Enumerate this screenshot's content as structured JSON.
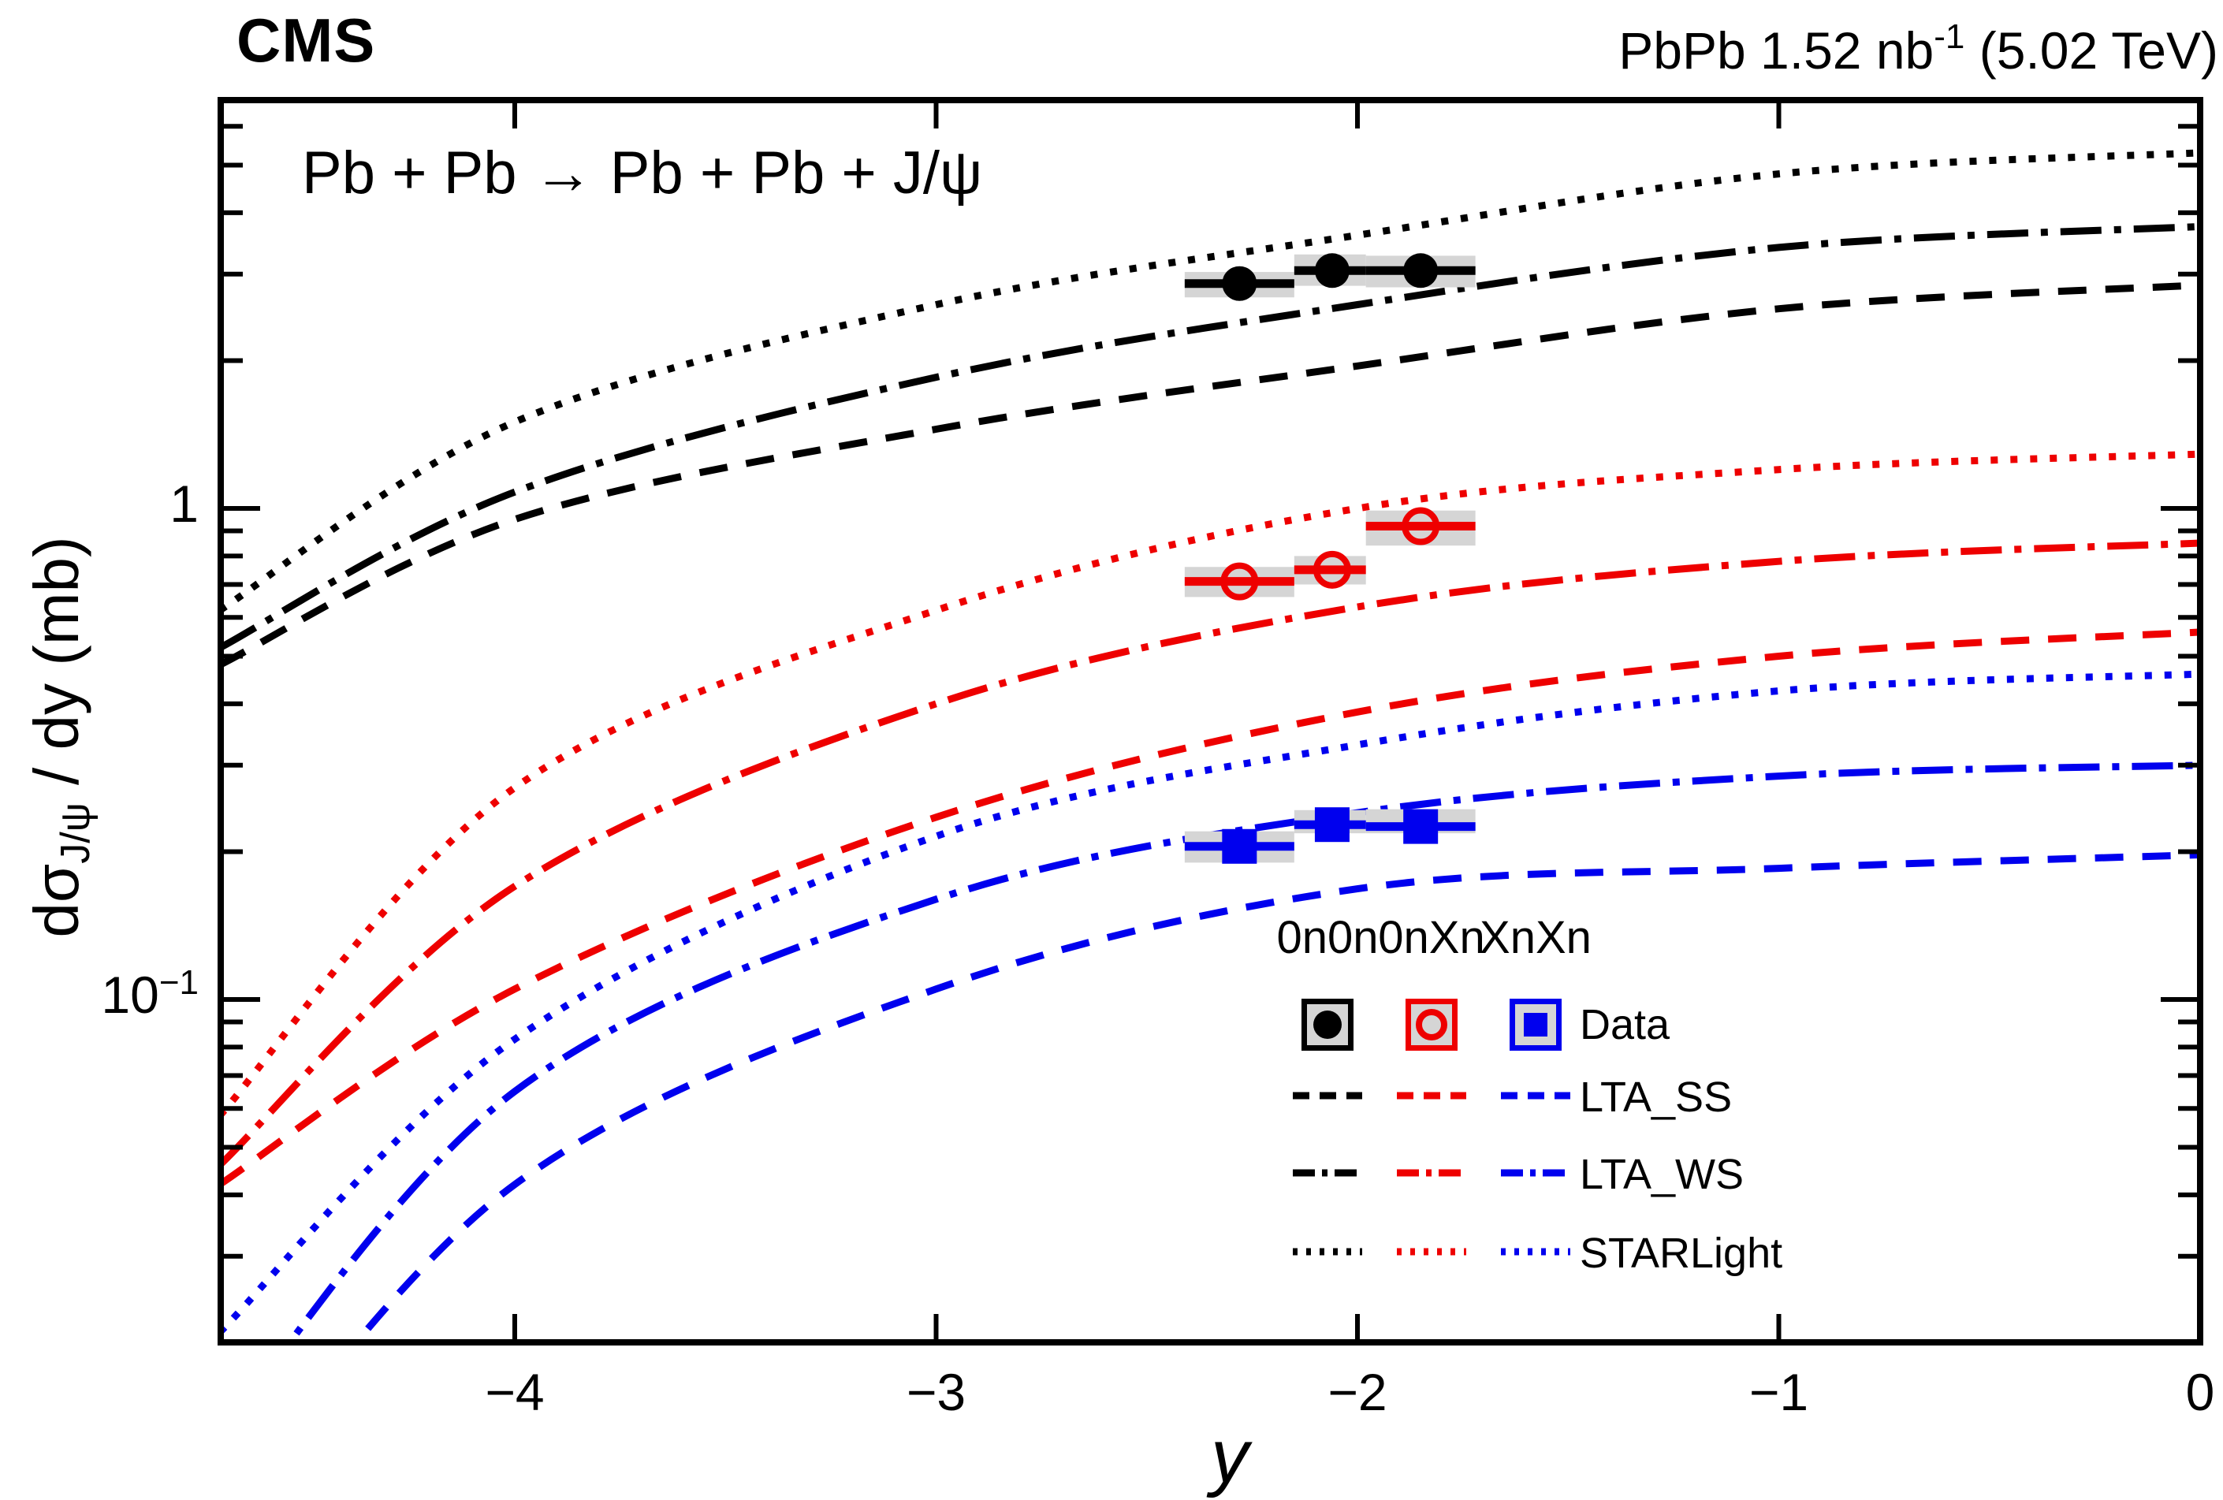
{
  "header": {
    "experiment": "CMS",
    "lumi_pre": "PbPb 1.52 nb",
    "lumi_sup": "-1",
    "lumi_post": " (5.02 TeV)"
  },
  "plot_title": "Pb + Pb → Pb + Pb + J/ψ",
  "colors": {
    "0n0n": "#000000",
    "0nXn": "#ee0000",
    "XnXn": "#0000ee",
    "sys_box": "#d5d5d5",
    "frame": "#000000"
  },
  "axes": {
    "x": {
      "title": "y",
      "range": [
        -4.7,
        0
      ],
      "ticks": [
        {
          "v": -4,
          "label": "−4"
        },
        {
          "v": -3,
          "label": "−3"
        },
        {
          "v": -2,
          "label": "−2"
        },
        {
          "v": -1,
          "label": "−1"
        },
        {
          "v": 0,
          "label": "0"
        }
      ]
    },
    "y": {
      "title_p1": "dσ",
      "title_sub": "J/ψ",
      "title_p2": " / dy (mb)",
      "scale": "log",
      "range": [
        0.02,
        6.8
      ],
      "major_ticks": [
        {
          "v": 1,
          "base": "1",
          "sup": ""
        },
        {
          "v": 0.1,
          "base": "10",
          "sup": "−1"
        }
      ]
    }
  },
  "legend": {
    "columns": [
      {
        "label": "0n0n",
        "class": "0n0n",
        "marker": "filled-circle"
      },
      {
        "label": "0nXn",
        "class": "0nXn",
        "marker": "open-circle"
      },
      {
        "label": "XnXn",
        "class": "XnXn",
        "marker": "filled-square"
      }
    ],
    "rows": [
      {
        "label": "Data",
        "type": "marker"
      },
      {
        "label": "LTA_SS",
        "type": "line",
        "style": "dashed"
      },
      {
        "label": "LTA_WS",
        "type": "line",
        "style": "dashdot"
      },
      {
        "label": "STARLight",
        "type": "line",
        "style": "dotted"
      }
    ]
  },
  "chart_data": {
    "type": "line+scatter",
    "title": "Pb + Pb → Pb + Pb + J/ψ",
    "xlabel": "y",
    "ylabel": "dσ_J/ψ / dy (mb)",
    "x_range": [
      -4.7,
      0
    ],
    "y_range_log": [
      0.02,
      6.8
    ],
    "measurements": [
      {
        "class": "0n0n",
        "marker": "filled-circle",
        "color": "#000000",
        "points": [
          {
            "y": -2.28,
            "y_lo": -2.41,
            "y_hi": -2.15,
            "value": 2.87,
            "sys_lo": 2.69,
            "sys_hi": 3.03
          },
          {
            "y": -2.06,
            "y_lo": -2.15,
            "y_hi": -1.98,
            "value": 3.05,
            "sys_lo": 2.84,
            "sys_hi": 3.29
          },
          {
            "y": -1.85,
            "y_lo": -1.98,
            "y_hi": -1.72,
            "value": 3.05,
            "sys_lo": 2.82,
            "sys_hi": 3.27
          }
        ]
      },
      {
        "class": "0nXn",
        "marker": "open-circle",
        "color": "#ee0000",
        "points": [
          {
            "y": -2.28,
            "y_lo": -2.41,
            "y_hi": -2.15,
            "value": 0.71,
            "sys_lo": 0.66,
            "sys_hi": 0.76
          },
          {
            "y": -2.06,
            "y_lo": -2.15,
            "y_hi": -1.98,
            "value": 0.75,
            "sys_lo": 0.7,
            "sys_hi": 0.8
          },
          {
            "y": -1.85,
            "y_lo": -1.98,
            "y_hi": -1.72,
            "value": 0.92,
            "sys_lo": 0.84,
            "sys_hi": 0.99
          }
        ]
      },
      {
        "class": "XnXn",
        "marker": "filled-square",
        "color": "#0000ee",
        "points": [
          {
            "y": -2.28,
            "y_lo": -2.41,
            "y_hi": -2.15,
            "value": 0.205,
            "sys_lo": 0.19,
            "sys_hi": 0.22
          },
          {
            "y": -2.06,
            "y_lo": -2.15,
            "y_hi": -1.98,
            "value": 0.227,
            "sys_lo": 0.218,
            "sys_hi": 0.243
          },
          {
            "y": -1.85,
            "y_lo": -1.98,
            "y_hi": -1.72,
            "value": 0.225,
            "sys_lo": 0.218,
            "sys_hi": 0.244
          }
        ]
      }
    ],
    "theory_curves": [
      {
        "model": "STARLight",
        "class": "0n0n",
        "style": "dotted",
        "color": "#000000",
        "points": [
          [
            -4.7,
            0.62
          ],
          [
            -4,
            1.5
          ],
          [
            -3,
            2.6
          ],
          [
            -2,
            3.6
          ],
          [
            -1,
            4.8
          ],
          [
            0,
            5.3
          ]
        ]
      },
      {
        "model": "LTA_WS",
        "class": "0n0n",
        "style": "dashdot",
        "color": "#000000",
        "points": [
          [
            -4.7,
            0.52
          ],
          [
            -4,
            1.08
          ],
          [
            -3,
            1.85
          ],
          [
            -2,
            2.6
          ],
          [
            -1,
            3.4
          ],
          [
            0,
            3.75
          ]
        ]
      },
      {
        "model": "LTA_SS",
        "class": "0n0n",
        "style": "dashed",
        "color": "#000000",
        "points": [
          [
            -4.7,
            0.48
          ],
          [
            -4,
            0.95
          ],
          [
            -3,
            1.45
          ],
          [
            -2,
            1.95
          ],
          [
            -1,
            2.55
          ],
          [
            0,
            2.85
          ]
        ]
      },
      {
        "model": "STARLight",
        "class": "0nXn",
        "style": "dotted",
        "color": "#ee0000",
        "points": [
          [
            -4.7,
            0.058
          ],
          [
            -4,
            0.27
          ],
          [
            -3,
            0.62
          ],
          [
            -2,
            1.0
          ],
          [
            -1,
            1.2
          ],
          [
            0,
            1.29
          ]
        ]
      },
      {
        "model": "LTA_WS",
        "class": "0nXn",
        "style": "dashdot",
        "color": "#ee0000",
        "points": [
          [
            -4.7,
            0.046
          ],
          [
            -4,
            0.17
          ],
          [
            -3,
            0.4
          ],
          [
            -2,
            0.63
          ],
          [
            -1,
            0.78
          ],
          [
            0,
            0.85
          ]
        ]
      },
      {
        "model": "LTA_SS",
        "class": "0nXn",
        "style": "dashed",
        "color": "#ee0000",
        "points": [
          [
            -4.7,
            0.042
          ],
          [
            -4,
            0.105
          ],
          [
            -3,
            0.235
          ],
          [
            -2,
            0.385
          ],
          [
            -1,
            0.5
          ],
          [
            0,
            0.56
          ]
        ]
      },
      {
        "model": "STARLight",
        "class": "XnXn",
        "style": "dotted",
        "color": "#0000ee",
        "points": [
          [
            -4.7,
            0.021
          ],
          [
            -4,
            0.083
          ],
          [
            -3,
            0.215
          ],
          [
            -2,
            0.33
          ],
          [
            -1,
            0.425
          ],
          [
            0,
            0.46
          ]
        ]
      },
      {
        "model": "LTA_WS",
        "class": "XnXn",
        "style": "dashdot",
        "color": "#0000ee",
        "points": [
          [
            -4.7,
            0.013
          ],
          [
            -4,
            0.065
          ],
          [
            -3,
            0.16
          ],
          [
            -2,
            0.24
          ],
          [
            -1,
            0.285
          ],
          [
            0,
            0.3
          ]
        ]
      },
      {
        "model": "LTA_SS",
        "class": "XnXn",
        "style": "dashed",
        "color": "#0000ee",
        "points": [
          [
            -4.7,
            0.009
          ],
          [
            -4,
            0.042
          ],
          [
            -3,
            0.105
          ],
          [
            -2,
            0.168
          ],
          [
            -1,
            0.185
          ],
          [
            0,
            0.197
          ]
        ]
      }
    ]
  }
}
